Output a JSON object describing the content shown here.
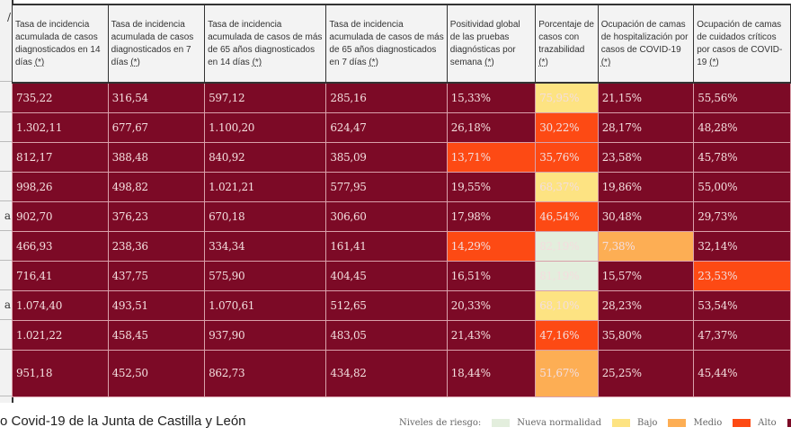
{
  "columns": [
    "Tasa de incidencia acumulada de casos diagnosticados en 14 días",
    "Tasa de incidencia acumulada de casos diagnosticados en 7 días",
    "Tasa de incidencia acumulada de casos de más de 65 años diagnosticados en 14 días",
    "Tasa de incidencia acumulada de casos de más de 65 años diagnosticados en 7 días",
    "Positividad global de las pruebas diagnósticas por semana",
    "Porcentaje de casos con trazabilidad",
    "Ocupación de camas de hospitalización por casos de COVID-19",
    "Ocupación de camas de cuidados críticos por casos de COVID-19"
  ],
  "footnote_marker": "(*)",
  "stub_labels": [
    "",
    "",
    "",
    "",
    "a",
    "",
    "",
    "a",
    "",
    ""
  ],
  "header_stub": "/",
  "rows": [
    {
      "cells": [
        {
          "v": "735,22",
          "lvl": "muy-alto"
        },
        {
          "v": "316,54",
          "lvl": "muy-alto"
        },
        {
          "v": "597,12",
          "lvl": "muy-alto"
        },
        {
          "v": "285,16",
          "lvl": "muy-alto"
        },
        {
          "v": "15,33%",
          "lvl": "muy-alto"
        },
        {
          "v": "75,95%",
          "lvl": "bajo"
        },
        {
          "v": "21,15%",
          "lvl": "muy-alto"
        },
        {
          "v": "55,56%",
          "lvl": "muy-alto"
        }
      ]
    },
    {
      "cells": [
        {
          "v": "1.302,11",
          "lvl": "muy-alto"
        },
        {
          "v": "677,67",
          "lvl": "muy-alto"
        },
        {
          "v": "1.100,20",
          "lvl": "muy-alto"
        },
        {
          "v": "624,47",
          "lvl": "muy-alto"
        },
        {
          "v": "26,18%",
          "lvl": "muy-alto"
        },
        {
          "v": "30,22%",
          "lvl": "alto"
        },
        {
          "v": "28,17%",
          "lvl": "muy-alto"
        },
        {
          "v": "48,28%",
          "lvl": "muy-alto"
        }
      ]
    },
    {
      "cells": [
        {
          "v": "812,17",
          "lvl": "muy-alto"
        },
        {
          "v": "388,48",
          "lvl": "muy-alto"
        },
        {
          "v": "840,92",
          "lvl": "muy-alto"
        },
        {
          "v": "385,09",
          "lvl": "muy-alto"
        },
        {
          "v": "13,71%",
          "lvl": "alto"
        },
        {
          "v": "35,76%",
          "lvl": "alto"
        },
        {
          "v": "23,58%",
          "lvl": "muy-alto"
        },
        {
          "v": "45,78%",
          "lvl": "muy-alto"
        }
      ]
    },
    {
      "cells": [
        {
          "v": "998,26",
          "lvl": "muy-alto"
        },
        {
          "v": "498,82",
          "lvl": "muy-alto"
        },
        {
          "v": "1.021,21",
          "lvl": "muy-alto"
        },
        {
          "v": "577,95",
          "lvl": "muy-alto"
        },
        {
          "v": "19,55%",
          "lvl": "muy-alto"
        },
        {
          "v": "68,37%",
          "lvl": "bajo"
        },
        {
          "v": "19,86%",
          "lvl": "muy-alto"
        },
        {
          "v": "55,00%",
          "lvl": "muy-alto"
        }
      ]
    },
    {
      "cells": [
        {
          "v": "902,70",
          "lvl": "muy-alto"
        },
        {
          "v": "376,23",
          "lvl": "muy-alto"
        },
        {
          "v": "670,18",
          "lvl": "muy-alto"
        },
        {
          "v": "306,60",
          "lvl": "muy-alto"
        },
        {
          "v": "17,98%",
          "lvl": "muy-alto"
        },
        {
          "v": "46,54%",
          "lvl": "alto"
        },
        {
          "v": "30,48%",
          "lvl": "muy-alto"
        },
        {
          "v": "29,73%",
          "lvl": "muy-alto"
        }
      ]
    },
    {
      "cells": [
        {
          "v": "466,93",
          "lvl": "muy-alto"
        },
        {
          "v": "238,36",
          "lvl": "muy-alto"
        },
        {
          "v": "334,34",
          "lvl": "muy-alto"
        },
        {
          "v": "161,41",
          "lvl": "muy-alto"
        },
        {
          "v": "14,29%",
          "lvl": "alto"
        },
        {
          "v": "82,19%",
          "lvl": "nueva"
        },
        {
          "v": "7,38%",
          "lvl": "medio"
        },
        {
          "v": "32,14%",
          "lvl": "muy-alto"
        }
      ]
    },
    {
      "cells": [
        {
          "v": "716,41",
          "lvl": "muy-alto"
        },
        {
          "v": "437,75",
          "lvl": "muy-alto"
        },
        {
          "v": "575,90",
          "lvl": "muy-alto"
        },
        {
          "v": "404,45",
          "lvl": "muy-alto"
        },
        {
          "v": "16,51%",
          "lvl": "muy-alto"
        },
        {
          "v": "81,19%",
          "lvl": "nueva"
        },
        {
          "v": "15,57%",
          "lvl": "muy-alto"
        },
        {
          "v": "23,53%",
          "lvl": "alto"
        }
      ]
    },
    {
      "cells": [
        {
          "v": "1.074,40",
          "lvl": "muy-alto"
        },
        {
          "v": "493,51",
          "lvl": "muy-alto"
        },
        {
          "v": "1.070,61",
          "lvl": "muy-alto"
        },
        {
          "v": "512,65",
          "lvl": "muy-alto"
        },
        {
          "v": "20,33%",
          "lvl": "muy-alto"
        },
        {
          "v": "68,10%",
          "lvl": "bajo"
        },
        {
          "v": "28,23%",
          "lvl": "muy-alto"
        },
        {
          "v": "53,54%",
          "lvl": "muy-alto"
        }
      ]
    },
    {
      "cells": [
        {
          "v": "1.021,22",
          "lvl": "muy-alto"
        },
        {
          "v": "458,45",
          "lvl": "muy-alto"
        },
        {
          "v": "937,90",
          "lvl": "muy-alto"
        },
        {
          "v": "483,05",
          "lvl": "muy-alto"
        },
        {
          "v": "21,43%",
          "lvl": "muy-alto"
        },
        {
          "v": "47,16%",
          "lvl": "alto"
        },
        {
          "v": "35,80%",
          "lvl": "muy-alto"
        },
        {
          "v": "47,37%",
          "lvl": "muy-alto"
        }
      ]
    },
    {
      "cells": [
        {
          "v": "951,18",
          "lvl": "muy-alto"
        },
        {
          "v": "452,50",
          "lvl": "muy-alto"
        },
        {
          "v": "862,73",
          "lvl": "muy-alto"
        },
        {
          "v": "434,82",
          "lvl": "muy-alto"
        },
        {
          "v": "18,44%",
          "lvl": "muy-alto"
        },
        {
          "v": "51,67%",
          "lvl": "medio"
        },
        {
          "v": "25,25%",
          "lvl": "muy-alto"
        },
        {
          "v": "45,44%",
          "lvl": "muy-alto"
        }
      ]
    }
  ],
  "footer": {
    "source": "o Covid-19 de la Junta de Castilla y León"
  },
  "legend": {
    "title": "Niveles de riesgo:",
    "items": [
      {
        "key": "nueva",
        "label": "Nueva normalidad",
        "color": "#e3eedd"
      },
      {
        "key": "bajo",
        "label": "Bajo",
        "color": "#fde382"
      },
      {
        "key": "medio",
        "label": "Medio",
        "color": "#fdae54"
      },
      {
        "key": "alto",
        "label": "Alto",
        "color": "#fd4a14"
      },
      {
        "key": "muy-alto",
        "label": "",
        "color": "#7c0a26"
      }
    ]
  }
}
